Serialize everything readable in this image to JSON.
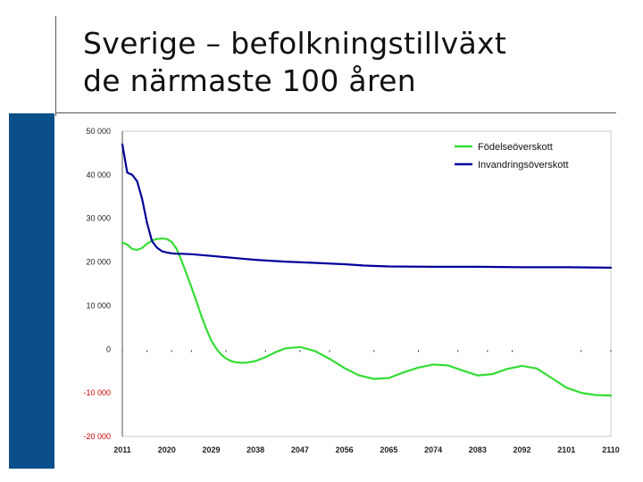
{
  "title": {
    "line1": "Sverige – befolkningstillväxt",
    "line2": "de närmaste 100 åren"
  },
  "colors": {
    "accent_bar": "#0b4f8a",
    "births_series": "#33dd33",
    "immigration_series": "#000099",
    "negative_tick_label": "#cc0000"
  },
  "chart_data": {
    "type": "line",
    "title": "",
    "xlabel": "",
    "ylabel": "",
    "ylim": [
      -20000,
      50000
    ],
    "xlim": [
      2011,
      2110
    ],
    "y_ticks": [
      50000,
      40000,
      30000,
      20000,
      10000,
      0,
      -10000,
      -20000
    ],
    "y_tick_labels": [
      "50 000",
      "40 000",
      "30 000",
      "20 000",
      "10 000",
      "0",
      "-10 000",
      "-20 000"
    ],
    "x_ticks": [
      2011,
      2020,
      2029,
      2038,
      2047,
      2056,
      2065,
      2074,
      2083,
      2092,
      2101,
      2110
    ],
    "x_tick_labels": [
      "2011",
      "2020",
      "2029",
      "2038",
      "2047",
      "2056",
      "2065",
      "2074",
      "2083",
      "2092",
      "2101",
      "2110"
    ],
    "grid": false,
    "legend_position": "top-right",
    "series": [
      {
        "name": "Födelseöverskott",
        "color": "#33dd33",
        "x": [
          2011,
          2012,
          2013,
          2014,
          2015,
          2016,
          2017,
          2018,
          2019,
          2020,
          2021,
          2022,
          2023,
          2024,
          2025,
          2026,
          2027,
          2028,
          2029,
          2030,
          2031,
          2032,
          2033,
          2034,
          2035,
          2036,
          2038,
          2040,
          2042,
          2044,
          2047,
          2050,
          2053,
          2056,
          2059,
          2062,
          2065,
          2068,
          2071,
          2074,
          2077,
          2080,
          2083,
          2086,
          2089,
          2092,
          2095,
          2098,
          2101,
          2104,
          2107,
          2110
        ],
        "values": [
          24500,
          24000,
          23000,
          22800,
          23200,
          24200,
          24900,
          25300,
          25400,
          25300,
          24600,
          23000,
          20300,
          17300,
          14200,
          11000,
          7700,
          4700,
          2000,
          200,
          -1200,
          -2100,
          -2700,
          -3000,
          -3100,
          -3100,
          -2700,
          -1800,
          -700,
          200,
          500,
          -400,
          -2200,
          -4300,
          -6000,
          -6800,
          -6600,
          -5300,
          -4200,
          -3500,
          -3700,
          -4900,
          -6000,
          -5700,
          -4500,
          -3800,
          -4400,
          -6600,
          -8800,
          -10000,
          -10500,
          -10600
        ]
      },
      {
        "name": "Invandringsöverskott",
        "color": "#000099",
        "x": [
          2011,
          2012,
          2013,
          2014,
          2015,
          2016,
          2017,
          2018,
          2019,
          2020,
          2021,
          2022,
          2023,
          2025,
          2029,
          2034,
          2038,
          2044,
          2050,
          2056,
          2060,
          2065,
          2074,
          2083,
          2092,
          2101,
          2110
        ],
        "values": [
          47000,
          40500,
          40000,
          38500,
          34500,
          29000,
          24800,
          23300,
          22500,
          22200,
          22000,
          21900,
          21900,
          21800,
          21400,
          20900,
          20500,
          20100,
          19800,
          19500,
          19200,
          19000,
          18900,
          18900,
          18800,
          18800,
          18700
        ]
      }
    ]
  }
}
